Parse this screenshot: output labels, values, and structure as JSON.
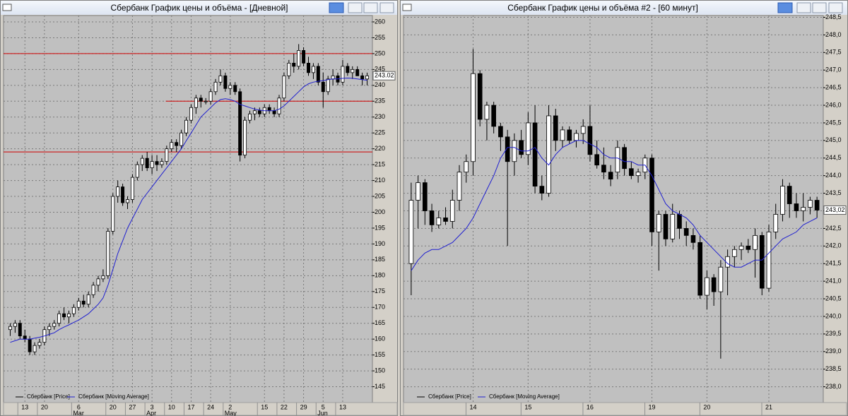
{
  "chart_data": [
    {
      "type": "candlestick",
      "title": "Сбербанк График цены и объёма - [Дневной]",
      "categories": [
        null,
        null,
        null,
        "13",
        null,
        null,
        null,
        "20",
        null,
        null,
        null,
        null,
        null,
        null,
        "6",
        null,
        null,
        null,
        null,
        null,
        null,
        "20",
        null,
        null,
        null,
        "27",
        null,
        null,
        null,
        "3",
        null,
        null,
        null,
        "10",
        null,
        null,
        null,
        "17",
        null,
        null,
        null,
        "24",
        null,
        null,
        null,
        "2",
        null,
        null,
        null,
        null,
        null,
        null,
        "15",
        null,
        null,
        null,
        "22",
        null,
        null,
        null,
        "29",
        null,
        null,
        null,
        "5",
        null,
        null,
        null,
        "13",
        null,
        null,
        null,
        null,
        null
      ],
      "months": [
        null,
        null,
        null,
        null,
        null,
        null,
        null,
        null,
        null,
        null,
        null,
        null,
        null,
        null,
        "Mar",
        null,
        null,
        null,
        null,
        null,
        null,
        null,
        null,
        null,
        null,
        null,
        null,
        null,
        null,
        "Apr",
        null,
        null,
        null,
        null,
        null,
        null,
        null,
        null,
        null,
        null,
        null,
        null,
        null,
        null,
        null,
        "May",
        null,
        null,
        null,
        null,
        null,
        null,
        null,
        null,
        null,
        null,
        null,
        null,
        null,
        null,
        null,
        null,
        null,
        null,
        "Jun",
        null,
        null,
        null,
        null,
        null,
        null,
        null,
        null,
        null
      ],
      "series": [
        {
          "name": "Сбербанк [Price]",
          "color": "#000000",
          "open": [
            163,
            164,
            165,
            161,
            160,
            156,
            158,
            159,
            163,
            164,
            165,
            168,
            167,
            168,
            170,
            172,
            171,
            174,
            177,
            179,
            180,
            194,
            205,
            208,
            203,
            204,
            211,
            215,
            217,
            214,
            216,
            215,
            216,
            220,
            222,
            221,
            225,
            229,
            233,
            236,
            235,
            235,
            238,
            241,
            243,
            239,
            240,
            238,
            218,
            229,
            231,
            232,
            231,
            233,
            232,
            231,
            236,
            243,
            247,
            246,
            251,
            247,
            244,
            246,
            241,
            238,
            242,
            243,
            241,
            246,
            244,
            245,
            243,
            242
          ],
          "high": [
            165,
            166,
            166,
            163,
            161,
            159,
            160,
            164,
            165,
            166,
            169,
            170,
            169,
            171,
            173,
            174,
            175,
            178,
            180,
            182,
            195,
            206,
            210,
            209,
            205,
            212,
            216,
            218,
            219,
            218,
            218,
            217,
            221,
            223,
            223,
            226,
            230,
            234,
            237,
            237,
            236,
            239,
            242,
            245,
            244,
            241,
            241,
            239,
            230,
            232,
            233,
            233,
            234,
            234,
            233,
            237,
            244,
            248,
            250,
            253,
            252,
            249,
            247,
            247,
            244,
            243,
            245,
            244,
            248,
            247,
            246,
            246,
            244,
            244
          ],
          "low": [
            161,
            162,
            160,
            159,
            155,
            155,
            157,
            158,
            161,
            163,
            164,
            166,
            165,
            167,
            169,
            170,
            170,
            173,
            175,
            178,
            179,
            193,
            203,
            202,
            201,
            203,
            210,
            213,
            213,
            212,
            213,
            214,
            215,
            219,
            219,
            220,
            224,
            228,
            231,
            233,
            234,
            234,
            237,
            240,
            238,
            237,
            237,
            216,
            217,
            228,
            229,
            230,
            230,
            231,
            230,
            230,
            235,
            242,
            244,
            245,
            246,
            243,
            242,
            240,
            233,
            237,
            240,
            240,
            240,
            243,
            242,
            243,
            240,
            240
          ],
          "close": [
            164,
            165,
            161,
            160,
            156,
            158,
            159,
            163,
            164,
            165,
            168,
            167,
            168,
            170,
            172,
            171,
            174,
            177,
            179,
            180,
            194,
            205,
            208,
            203,
            204,
            211,
            215,
            217,
            214,
            216,
            215,
            216,
            220,
            222,
            221,
            225,
            229,
            233,
            236,
            235,
            235,
            238,
            241,
            243,
            239,
            240,
            238,
            218,
            229,
            231,
            232,
            231,
            233,
            232,
            231,
            236,
            243,
            247,
            246,
            251,
            247,
            244,
            246,
            241,
            238,
            242,
            243,
            241,
            246,
            244,
            245,
            243,
            242,
            243
          ]
        },
        {
          "name": "Сбербанк [Moving Average]",
          "color": "#2020d0",
          "values": [
            159,
            159.5,
            160,
            160,
            160,
            160.3,
            160.6,
            161,
            161.5,
            162,
            163,
            163.8,
            164.5,
            165.3,
            166,
            167,
            168,
            169.5,
            171,
            173,
            177,
            182,
            187,
            191,
            195,
            198,
            201,
            204,
            206,
            208,
            210,
            212,
            214,
            216,
            218,
            220,
            222.5,
            225,
            227.5,
            230,
            231.5,
            233,
            234.5,
            235.5,
            235.8,
            235.5,
            235,
            234,
            233.5,
            233,
            232.5,
            232.2,
            232,
            232,
            232,
            232.5,
            233.5,
            235,
            236.5,
            238,
            239.5,
            240.5,
            241,
            241.3,
            241.5,
            241.8,
            242,
            242,
            242.2,
            242.3,
            242.2,
            242,
            241.8,
            241.6
          ]
        }
      ],
      "levels": [
        250,
        235,
        219
      ],
      "level_color": "#d00000",
      "ylim": [
        140,
        262
      ],
      "yticks": [
        145,
        150,
        155,
        160,
        165,
        170,
        175,
        180,
        185,
        190,
        195,
        200,
        205,
        210,
        215,
        220,
        225,
        230,
        235,
        240,
        245,
        250,
        255,
        260
      ],
      "last_price": {
        "value": 243.02,
        "label": "243.02"
      },
      "grid": true
    },
    {
      "type": "candlestick",
      "title": "Сбербанк График цены и объёма #2 - [60 минут]",
      "categories": [
        null,
        null,
        null,
        null,
        null,
        null,
        null,
        null,
        null,
        "14",
        null,
        null,
        null,
        null,
        null,
        null,
        null,
        "15",
        null,
        null,
        null,
        null,
        null,
        null,
        null,
        null,
        "16",
        null,
        null,
        null,
        null,
        null,
        null,
        null,
        null,
        "19",
        null,
        null,
        null,
        null,
        null,
        null,
        null,
        "20",
        null,
        null,
        null,
        null,
        null,
        null,
        null,
        null,
        "21",
        null,
        null,
        null,
        null,
        null,
        null,
        null
      ],
      "series": [
        {
          "name": "Сбербанк [Price]",
          "color": "#000000",
          "open": [
            241.5,
            243.3,
            243.8,
            243.0,
            242.6,
            242.8,
            242.7,
            243.3,
            244.1,
            244.4,
            246.9,
            245.6,
            246.0,
            245.4,
            245.1,
            244.4,
            245.0,
            244.6,
            245.5,
            243.7,
            243.5,
            245.7,
            245.0,
            245.3,
            245.0,
            245.2,
            245.4,
            244.6,
            244.3,
            244.1,
            244.1,
            244.8,
            244.2,
            244.0,
            244.1,
            244.5,
            242.4,
            242.9,
            242.2,
            242.9,
            242.5,
            242.3,
            242.1,
            240.6,
            241.1,
            240.7,
            241.4,
            241.7,
            241.9,
            242.0,
            241.9,
            242.3,
            240.8,
            242.4,
            242.9,
            243.7,
            243.2,
            243.0,
            243.1,
            243.3
          ],
          "high": [
            243.8,
            244.0,
            243.9,
            243.2,
            243.0,
            243.1,
            243.6,
            244.3,
            244.6,
            247.6,
            247.0,
            246.1,
            246.1,
            245.5,
            245.3,
            245.2,
            245.3,
            245.8,
            246.0,
            244.0,
            246.0,
            245.9,
            245.4,
            245.4,
            245.3,
            245.6,
            246.0,
            245.0,
            244.8,
            244.3,
            245.0,
            244.9,
            244.4,
            244.2,
            244.6,
            244.6,
            243.0,
            243.0,
            243.2,
            243.0,
            242.7,
            242.5,
            242.3,
            241.3,
            241.2,
            241.6,
            241.9,
            242.0,
            242.1,
            242.2,
            242.5,
            242.4,
            242.6,
            243.2,
            243.9,
            243.8,
            243.5,
            243.5,
            243.4,
            243.4
          ],
          "low": [
            240.6,
            242.5,
            242.6,
            242.4,
            242.5,
            242.6,
            242.5,
            243.0,
            243.8,
            244.0,
            245.4,
            245.0,
            245.2,
            244.7,
            242.0,
            244.0,
            244.5,
            244.3,
            243.5,
            243.3,
            243.4,
            244.7,
            244.8,
            244.9,
            244.8,
            244.9,
            244.4,
            244.2,
            243.9,
            243.7,
            243.9,
            244.0,
            243.9,
            243.8,
            243.9,
            242.0,
            241.3,
            242.0,
            242.1,
            242.2,
            242.0,
            241.9,
            240.5,
            240.2,
            240.3,
            238.8,
            240.6,
            241.4,
            241.6,
            241.8,
            241.1,
            240.6,
            240.7,
            242.2,
            242.7,
            242.8,
            242.8,
            242.7,
            242.9,
            242.8
          ],
          "close": [
            243.3,
            243.8,
            243.0,
            242.6,
            242.8,
            242.7,
            243.3,
            244.1,
            244.4,
            246.9,
            245.6,
            246.0,
            245.4,
            245.1,
            244.4,
            245.0,
            244.6,
            245.5,
            243.7,
            243.5,
            245.7,
            245.0,
            245.3,
            245.0,
            245.2,
            245.4,
            244.6,
            244.3,
            244.1,
            243.9,
            244.8,
            244.2,
            244.0,
            244.1,
            244.5,
            242.4,
            242.9,
            242.2,
            242.9,
            242.5,
            242.3,
            242.1,
            240.6,
            241.1,
            240.7,
            241.4,
            241.7,
            241.9,
            242.0,
            241.9,
            242.3,
            240.8,
            242.4,
            242.9,
            243.7,
            243.2,
            243.0,
            243.1,
            243.3,
            243.02
          ]
        },
        {
          "name": "Сбербанк [Moving Average]",
          "color": "#2020d0",
          "values": [
            241.3,
            241.6,
            241.8,
            241.9,
            241.9,
            242.0,
            242.1,
            242.3,
            242.5,
            242.8,
            243.2,
            243.6,
            244.0,
            244.5,
            244.8,
            244.8,
            244.7,
            244.7,
            244.8,
            244.5,
            244.3,
            244.6,
            244.8,
            244.9,
            245.0,
            245.0,
            244.9,
            244.8,
            244.6,
            244.5,
            244.5,
            244.4,
            244.4,
            244.3,
            244.3,
            244.0,
            243.6,
            243.2,
            243.0,
            242.9,
            242.8,
            242.6,
            242.3,
            242.1,
            241.9,
            241.7,
            241.5,
            241.4,
            241.4,
            241.5,
            241.6,
            241.6,
            241.8,
            242.0,
            242.2,
            242.3,
            242.4,
            242.6,
            242.7,
            242.8
          ]
        }
      ],
      "ylim": [
        237.55,
        248.55
      ],
      "yticks": [
        {
          "value": 238.0,
          "label": "238,0"
        },
        {
          "value": 238.5,
          "label": "238,5"
        },
        {
          "value": 239.0,
          "label": "239,0"
        },
        {
          "value": 239.5,
          "label": "239,5"
        },
        {
          "value": 240.0,
          "label": "240,0"
        },
        {
          "value": 240.5,
          "label": "240,5"
        },
        {
          "value": 241.0,
          "label": "241,0"
        },
        {
          "value": 241.5,
          "label": "241,5"
        },
        {
          "value": 242.0,
          "label": "242,0"
        },
        {
          "value": 242.5,
          "label": "242,5"
        },
        {
          "value": 243.0,
          "label": "243,0"
        },
        {
          "value": 243.5,
          "label": "243,5"
        },
        {
          "value": 244.0,
          "label": "244,0"
        },
        {
          "value": 244.5,
          "label": "244,5"
        },
        {
          "value": 245.0,
          "label": "245,0"
        },
        {
          "value": 245.5,
          "label": "245,5"
        },
        {
          "value": 246.0,
          "label": "246,0"
        },
        {
          "value": 246.5,
          "label": "246,5"
        },
        {
          "value": 247.0,
          "label": "247,0"
        },
        {
          "value": 247.5,
          "label": "247,5"
        },
        {
          "value": 248.0,
          "label": "248,0"
        },
        {
          "value": 248.5,
          "label": "248,5"
        }
      ],
      "last_price": {
        "value": 243.02,
        "label": "243,02"
      },
      "grid": true
    }
  ]
}
